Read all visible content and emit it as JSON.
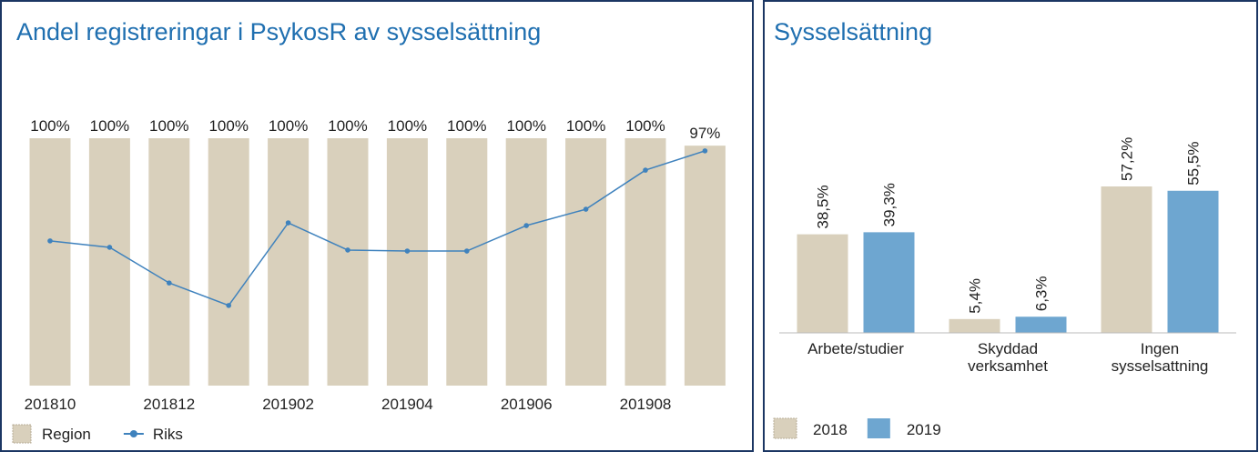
{
  "chart_data": [
    {
      "type": "combo",
      "title": "Andel registreringar i PsykosR av sysselsättning",
      "categories": [
        "201810",
        null,
        "201812",
        null,
        "201902",
        null,
        "201904",
        null,
        "201906",
        null,
        "201908",
        null
      ],
      "ylim": [
        0,
        100
      ],
      "series": [
        {
          "name": "Region",
          "type": "bar",
          "color": "#d9d0bc",
          "values": [
            100,
            100,
            100,
            100,
            100,
            100,
            100,
            100,
            100,
            100,
            100,
            97
          ],
          "value_labels": [
            "100%",
            "100%",
            "100%",
            "100%",
            "100%",
            "100%",
            "100%",
            "100%",
            "100%",
            "100%",
            "100%",
            "97%"
          ]
        },
        {
          "name": "Riks",
          "type": "line",
          "color": "#3f82bd",
          "values": [
            58.5,
            55.9,
            41.5,
            32.4,
            65.8,
            54.8,
            54.4,
            54.4,
            64.7,
            71.3,
            87.1,
            94.9
          ]
        }
      ]
    },
    {
      "type": "bar",
      "title": "Sysselsättning",
      "categories": [
        "Arbete/studier",
        "Skyddad verksamhet",
        "Ingen sysselsattning"
      ],
      "ylim": [
        0,
        100
      ],
      "series": [
        {
          "name": "2018",
          "color": "#d9d0bc",
          "values": [
            38.5,
            5.4,
            57.2
          ],
          "value_labels": [
            "38,5%",
            "5,4%",
            "57,2%"
          ]
        },
        {
          "name": "2019",
          "color": "#6ea6d0",
          "values": [
            39.3,
            6.3,
            55.5
          ],
          "value_labels": [
            "39,3%",
            "6,3%",
            "55,5%"
          ]
        }
      ]
    }
  ]
}
